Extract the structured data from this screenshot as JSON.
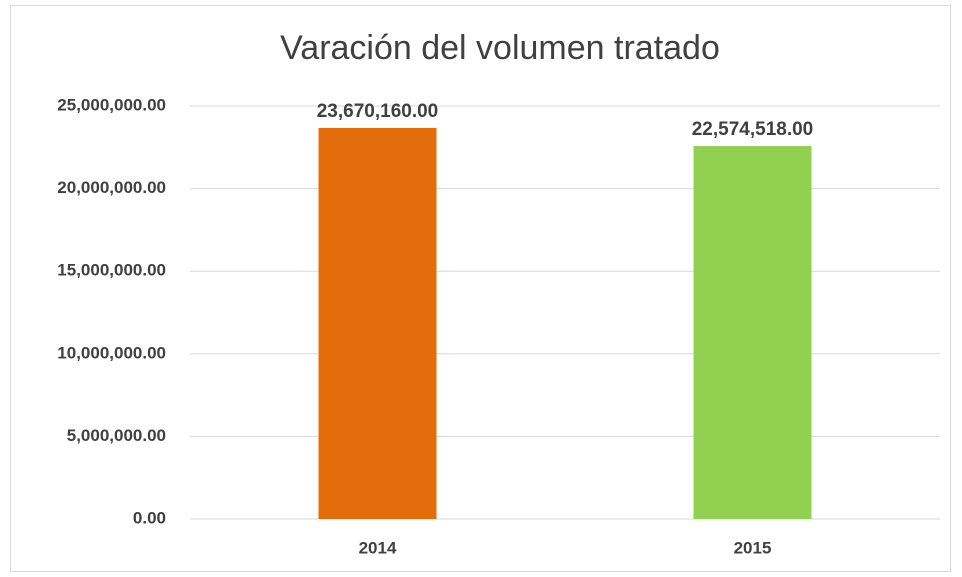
{
  "chart_data": {
    "type": "bar",
    "title": "Varación del volumen tratado",
    "categories": [
      "2014",
      "2015"
    ],
    "values": [
      23670160,
      22574518
    ],
    "value_labels": [
      "23,670,160.00",
      "22,574,518.00"
    ],
    "colors": [
      "#e46c0a",
      "#92d050"
    ],
    "ylim": [
      0,
      25000000
    ],
    "yticks": [
      {
        "value": 0,
        "label": "0.00"
      },
      {
        "value": 5000000,
        "label": "5,000,000.00"
      },
      {
        "value": 10000000,
        "label": "10,000,000.00"
      },
      {
        "value": 15000000,
        "label": "15,000,000.00"
      },
      {
        "value": 20000000,
        "label": "20,000,000.00"
      },
      {
        "value": 25000000,
        "label": "25,000,000.00"
      }
    ],
    "grid": true
  }
}
